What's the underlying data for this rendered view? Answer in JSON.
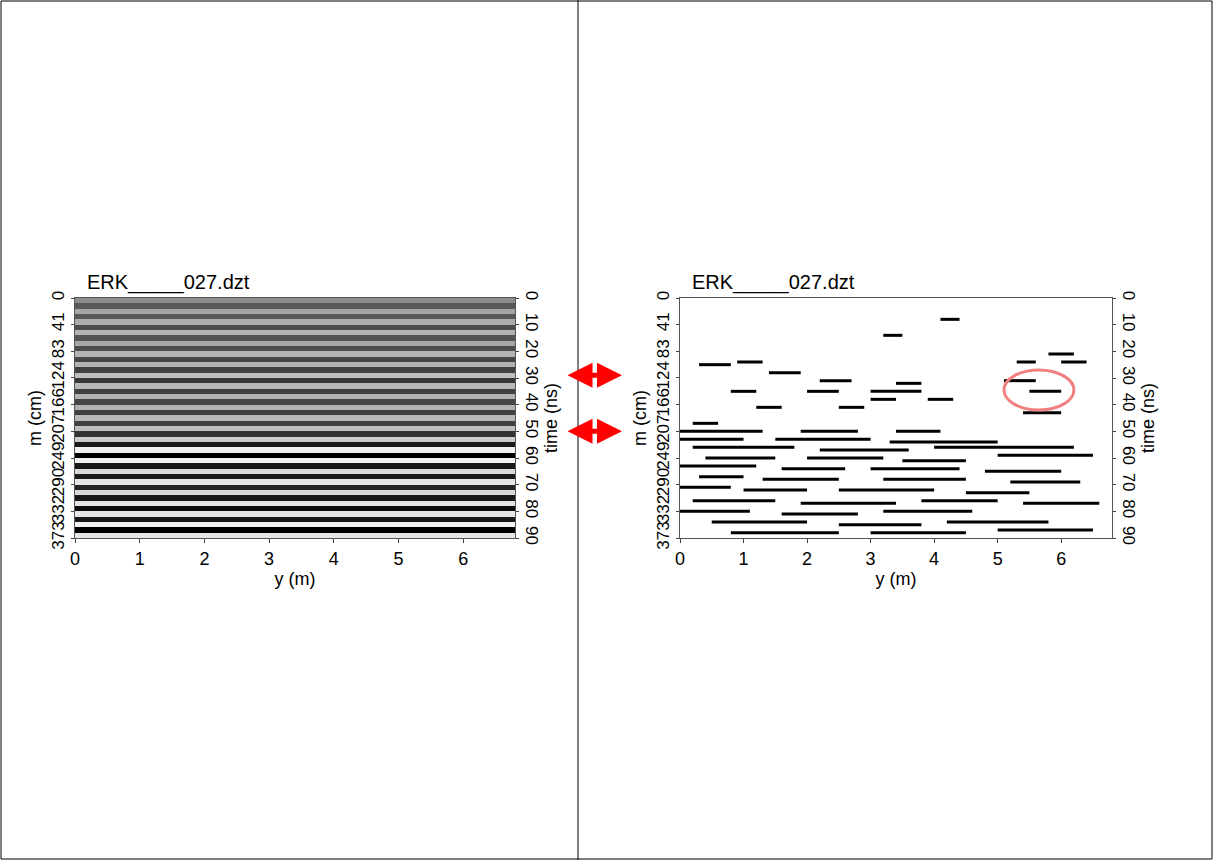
{
  "chart_data": [
    {
      "type": "heatmap",
      "title": "ERK_____027.dzt",
      "x_label": "y (m)",
      "y_label": "m (cm)",
      "y2_label": "time (ns)",
      "xlim": [
        0,
        6.8
      ],
      "xticks": [
        0,
        1,
        2,
        3,
        4,
        5,
        6
      ],
      "ylim": [
        0,
        373
      ],
      "yticks": [
        0,
        41,
        83,
        124,
        166,
        207,
        249,
        290,
        332,
        373
      ],
      "y2lim": [
        0,
        90
      ],
      "y2ticks": [
        0,
        10,
        20,
        30,
        40,
        50,
        60,
        70,
        80,
        90
      ],
      "x": [
        0,
        6.8
      ],
      "time": [
        1,
        3,
        5,
        7,
        9,
        11,
        13,
        15,
        17,
        19,
        21,
        23,
        25,
        27,
        29,
        31,
        33,
        35,
        37,
        39,
        41,
        43,
        45,
        47,
        49,
        51,
        53,
        55,
        57,
        59,
        61,
        63,
        65,
        67,
        69,
        71,
        73,
        75,
        77,
        79,
        81,
        83,
        85,
        87,
        89
      ],
      "amplitude": [
        0.1,
        -0.3,
        0.3,
        -0.3,
        0.35,
        -0.4,
        0.4,
        -0.35,
        0.3,
        -0.4,
        0.4,
        -0.45,
        0.4,
        -0.5,
        0.5,
        -0.55,
        0.45,
        -0.5,
        0.4,
        -0.45,
        0.4,
        -0.5,
        0.45,
        -0.5,
        0.5,
        -0.6,
        0.6,
        -0.8,
        0.9,
        -1,
        0.9,
        -0.8,
        0.7,
        -0.8,
        0.8,
        -0.7,
        0.7,
        -0.8,
        0.8,
        -0.9,
        0.8,
        -0.8,
        0.9,
        -1,
        0.8
      ],
      "zlim": [
        -1,
        1
      ]
    },
    {
      "type": "segments",
      "title": "ERK_____027.dzt",
      "x_label": "y (m)",
      "y_label": "m (cm)",
      "y2_label": "time (ns)",
      "xlim": [
        0,
        6.8
      ],
      "xticks": [
        0,
        1,
        2,
        3,
        4,
        5,
        6
      ],
      "ylim": [
        0,
        373
      ],
      "yticks": [
        0,
        41,
        83,
        124,
        166,
        207,
        249,
        290,
        332,
        373
      ],
      "y2lim": [
        0,
        90
      ],
      "y2ticks": [
        0,
        10,
        20,
        30,
        40,
        50,
        60,
        70,
        80,
        90
      ],
      "color": "#000000",
      "segments": [
        [
          3.2,
          3.5,
          14
        ],
        [
          4.1,
          4.4,
          8
        ],
        [
          0.3,
          0.8,
          25
        ],
        [
          0.9,
          1.3,
          24
        ],
        [
          5.3,
          5.6,
          24
        ],
        [
          5.8,
          6.2,
          21
        ],
        [
          6.0,
          6.4,
          24
        ],
        [
          1.4,
          1.9,
          28
        ],
        [
          2.2,
          2.7,
          31
        ],
        [
          3.4,
          3.8,
          32
        ],
        [
          5.1,
          5.6,
          31
        ],
        [
          0.8,
          1.2,
          35
        ],
        [
          2.0,
          2.5,
          35
        ],
        [
          3.0,
          3.8,
          35
        ],
        [
          5.5,
          6.0,
          35
        ],
        [
          3.0,
          3.4,
          38
        ],
        [
          3.9,
          4.3,
          38
        ],
        [
          1.2,
          1.6,
          41
        ],
        [
          2.5,
          2.9,
          41
        ],
        [
          5.4,
          6.0,
          43
        ],
        [
          0.2,
          0.6,
          47
        ],
        [
          0,
          1.3,
          50
        ],
        [
          1.9,
          2.8,
          50
        ],
        [
          3.4,
          4.1,
          50
        ],
        [
          0,
          1.0,
          53
        ],
        [
          1.5,
          3.0,
          53
        ],
        [
          3.3,
          5.0,
          54
        ],
        [
          0.2,
          1.8,
          56
        ],
        [
          2.2,
          3.6,
          57
        ],
        [
          4.0,
          6.2,
          56
        ],
        [
          0.4,
          1.5,
          60
        ],
        [
          2.0,
          3.2,
          60
        ],
        [
          3.5,
          4.5,
          61
        ],
        [
          5.0,
          6.5,
          59
        ],
        [
          0,
          1.2,
          63
        ],
        [
          1.6,
          2.6,
          64
        ],
        [
          3.0,
          4.4,
          64
        ],
        [
          4.8,
          6.0,
          65
        ],
        [
          0.3,
          1.0,
          67
        ],
        [
          1.3,
          2.5,
          68
        ],
        [
          3.2,
          4.5,
          68
        ],
        [
          5.2,
          6.3,
          69
        ],
        [
          0,
          0.8,
          71
        ],
        [
          1.0,
          2.0,
          72
        ],
        [
          2.5,
          4.0,
          72
        ],
        [
          4.5,
          5.5,
          73
        ],
        [
          0.2,
          1.5,
          76
        ],
        [
          1.9,
          3.4,
          77
        ],
        [
          3.8,
          5.0,
          76
        ],
        [
          5.4,
          6.6,
          77
        ],
        [
          0,
          1.1,
          80
        ],
        [
          1.6,
          2.8,
          81
        ],
        [
          3.2,
          4.6,
          80
        ],
        [
          0.5,
          2.0,
          84
        ],
        [
          2.5,
          3.8,
          85
        ],
        [
          4.2,
          5.8,
          84
        ],
        [
          0.8,
          2.5,
          88
        ],
        [
          3.0,
          4.5,
          88
        ],
        [
          5.0,
          6.5,
          87
        ]
      ],
      "highlight": {
        "x": [
          5.1,
          6.2
        ],
        "time": [
          27,
          42
        ],
        "color": "#f08080"
      }
    }
  ],
  "links": {
    "time": [
      29,
      50
    ],
    "color": "#ff0000"
  }
}
